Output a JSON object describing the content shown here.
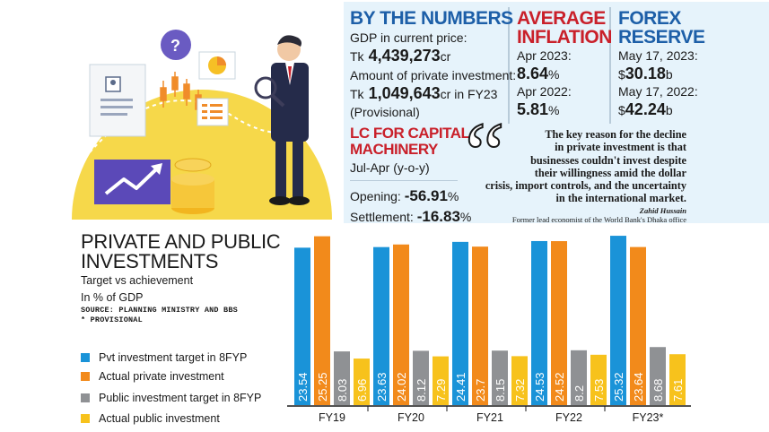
{
  "by_numbers": {
    "heading": "BY THE NUMBERS",
    "gdp_label": "GDP in current price:",
    "gdp_prefix": "Tk",
    "gdp_value": "4,439,273",
    "gdp_unit": "cr",
    "pi_label": "Amount of private investment:",
    "pi_prefix": "Tk",
    "pi_value": "1,049,643",
    "pi_suffix": "cr in FY23",
    "pi_note": "(Provisional)"
  },
  "inflation": {
    "heading_1": "AVERAGE",
    "heading_2": "INFLATION",
    "d1": "Apr 2023:",
    "v1": "8.64",
    "d2": "Apr 2022:",
    "v2": "5.81",
    "unit": "%"
  },
  "forex": {
    "heading_1": "FOREX",
    "heading_2": "RESERVE",
    "d1": "May 17, 2023:",
    "v1": "30.18",
    "d2": "May 17, 2022:",
    "v2": "42.24",
    "prefix": "$",
    "unit": "b"
  },
  "lc": {
    "heading_1": "LC FOR CAPITAL",
    "heading_2": "MACHINERY",
    "period": "Jul-Apr (y-o-y)",
    "opening_label": "Opening:",
    "opening_value": "-56.91",
    "settlement_label": "Settlement:",
    "settlement_value": "-16.83",
    "unit": "%"
  },
  "quote": {
    "mark": "“",
    "line1": "The key reason for the decline",
    "line2": "in private investment is that",
    "line3": "businesses couldn't invest despite",
    "line4": "their willingness amid the dollar",
    "line5": "crisis, import controls, and the uncertainty",
    "line6": "in the international market.",
    "name": "Zahid Hussain",
    "role": "Former lead economist of the World Bank's Dhaka office"
  },
  "colors": {
    "accent_blue": "#1d5fa8",
    "accent_red": "#c9202a",
    "panel_bg": "#e6f3fb"
  },
  "chart_data": {
    "type": "bar",
    "title_1": "PRIVATE AND PUBLIC",
    "title_2": "INVESTMENTS",
    "subtitle": "Target vs achievement",
    "unit_label": "In % of GDP",
    "source_1": "SOURCE: PLANNING MINISTRY AND BBS",
    "source_2": "* PROVISIONAL",
    "categories": [
      "FY19",
      "FY20",
      "FY21",
      "FY22",
      "FY23*"
    ],
    "series": [
      {
        "name": "Pvt investment target in 8FYP",
        "color": "#1a93d8",
        "values": [
          23.54,
          23.63,
          24.41,
          24.53,
          25.32
        ],
        "labels": [
          "23.54",
          "23.63",
          "24.41",
          "24.53",
          "25.32"
        ]
      },
      {
        "name": "Actual private investment",
        "color": "#f28a1b",
        "values": [
          25.25,
          24.02,
          23.7,
          24.52,
          23.64
        ],
        "labels": [
          "25.25",
          "24.02",
          "23.7",
          "24.52",
          "23.64"
        ]
      },
      {
        "name": "Public investment target in 8FYP",
        "color": "#8f9194",
        "values": [
          8.03,
          8.12,
          8.15,
          8.2,
          8.68
        ],
        "labels": [
          "8.03",
          "8.12",
          "8.15",
          "8.2",
          "8.68"
        ]
      },
      {
        "name": "Actual public investment",
        "color": "#f7c21c",
        "values": [
          6.96,
          7.29,
          7.32,
          7.53,
          7.61
        ],
        "labels": [
          "6.96",
          "7.29",
          "7.32",
          "7.53",
          "7.61"
        ]
      }
    ],
    "ylim": [
      0,
      26
    ],
    "grid": false,
    "legend": "left"
  }
}
